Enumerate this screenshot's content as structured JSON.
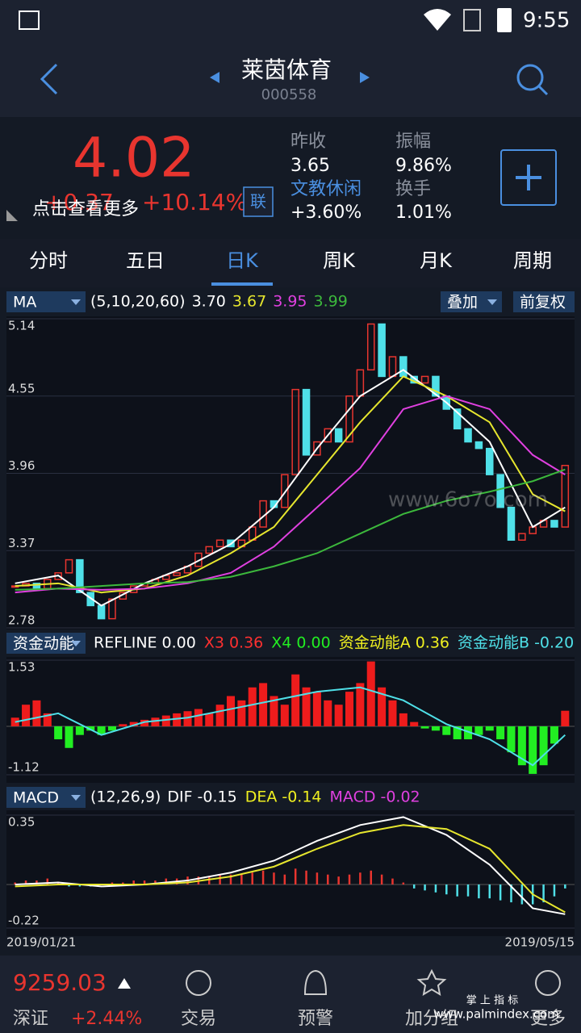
{
  "status_bar": {
    "time": "9:55"
  },
  "header": {
    "title": "莱茵体育",
    "code": "000558"
  },
  "quote": {
    "price": "4.02",
    "change": "+0.37",
    "change_pct": "+10.14%",
    "more": "点击查看更多",
    "link_button": "联",
    "prev_close_label": "昨收",
    "prev_close": "3.65",
    "sector": "文教休闲",
    "sector_change": "+3.60%",
    "amplitude_label": "振幅",
    "amplitude": "9.86%",
    "turnover_label": "换手",
    "turnover": "1.01%"
  },
  "tabs": [
    "分时",
    "五日",
    "日K",
    "周K",
    "月K",
    "周期"
  ],
  "active_tab": 2,
  "chart_data": [
    {
      "type": "candlestick",
      "indicator": "MA",
      "params": "(5,10,20,60)",
      "overlay": "叠加",
      "adjust": "前复权",
      "up_color": "#e8352f",
      "down_color": "#4fe0e8",
      "categories": [
        "2019/01/21",
        null,
        null,
        null,
        null,
        null,
        null,
        null,
        null,
        null,
        null,
        null,
        null,
        null,
        null,
        null,
        null,
        null,
        null,
        null,
        null,
        null,
        null,
        null,
        null,
        null,
        null,
        null,
        null,
        null,
        null,
        null,
        null,
        null,
        null,
        null,
        null,
        null,
        null,
        null,
        null,
        null,
        null,
        null,
        null,
        null,
        null,
        null,
        null,
        null,
        null,
        "2019/05/15"
      ],
      "values": [
        3.1,
        3.12,
        3.08,
        3.15,
        3.2,
        3.3,
        3.05,
        2.95,
        2.85,
        3.0,
        3.05,
        3.1,
        3.12,
        3.15,
        3.18,
        3.2,
        3.25,
        3.35,
        3.4,
        3.45,
        3.4,
        3.45,
        3.55,
        3.75,
        3.7,
        3.95,
        4.6,
        4.1,
        4.2,
        4.3,
        4.2,
        4.55,
        4.75,
        5.1,
        4.7,
        4.85,
        4.7,
        4.65,
        4.7,
        4.55,
        4.45,
        4.3,
        4.2,
        4.15,
        3.95,
        3.7,
        3.45,
        3.5,
        3.55,
        3.6,
        3.55,
        4.02
      ],
      "ylim": [
        2.78,
        5.14
      ],
      "yticks": [
        5.14,
        4.55,
        3.96,
        3.37,
        2.78
      ],
      "series": [
        {
          "color": "#ffffff",
          "value_label": "3.70",
          "x": [
            0,
            4,
            8,
            12,
            16,
            20,
            24,
            28,
            32,
            36,
            40,
            44,
            48,
            51
          ],
          "values": [
            3.12,
            3.18,
            2.95,
            3.12,
            3.25,
            3.42,
            3.7,
            4.15,
            4.55,
            4.75,
            4.5,
            4.2,
            3.55,
            3.7
          ]
        },
        {
          "color": "#e6e62e",
          "value_label": "3.67",
          "x": [
            0,
            4,
            8,
            12,
            16,
            20,
            24,
            28,
            32,
            36,
            40,
            44,
            48,
            51
          ],
          "values": [
            3.1,
            3.12,
            3.05,
            3.08,
            3.18,
            3.35,
            3.55,
            3.95,
            4.35,
            4.7,
            4.55,
            4.35,
            3.8,
            3.67
          ]
        },
        {
          "color": "#e040e0",
          "value_label": "3.95",
          "x": [
            0,
            4,
            8,
            12,
            16,
            20,
            24,
            28,
            32,
            36,
            40,
            44,
            48,
            51
          ],
          "values": [
            3.05,
            3.08,
            3.07,
            3.08,
            3.12,
            3.2,
            3.4,
            3.7,
            4.0,
            4.45,
            4.55,
            4.45,
            4.1,
            3.95
          ]
        },
        {
          "color": "#3cb83c",
          "value_label": "3.99",
          "x": [
            0,
            4,
            8,
            12,
            16,
            20,
            24,
            28,
            32,
            36,
            40,
            44,
            48,
            51
          ],
          "values": [
            3.07,
            3.08,
            3.1,
            3.12,
            3.13,
            3.17,
            3.25,
            3.35,
            3.5,
            3.65,
            3.75,
            3.82,
            3.9,
            3.99
          ]
        }
      ]
    },
    {
      "type": "bar",
      "indicator": "资金动能",
      "up_color": "#ee1c1c",
      "down_color": "#22ee22",
      "legend": [
        {
          "name": "REFLINE",
          "value": "0.00",
          "color": "#ffffff"
        },
        {
          "name": "X3",
          "value": "0.36",
          "color": "#ff3030"
        },
        {
          "name": "X4",
          "value": "0.00",
          "color": "#22ee22"
        },
        {
          "name": "资金动能A",
          "value": "0.36",
          "color": "#f0f020"
        },
        {
          "name": "资金动能B",
          "value": "-0.20",
          "color": "#4fe0e8"
        }
      ],
      "values": [
        0.2,
        0.5,
        0.6,
        0.3,
        -0.3,
        -0.5,
        -0.2,
        -0.1,
        -0.2,
        -0.1,
        0.05,
        0.1,
        0.15,
        0.2,
        0.25,
        0.3,
        0.35,
        0.4,
        0.3,
        0.5,
        0.7,
        0.6,
        0.9,
        1.0,
        0.7,
        0.5,
        1.2,
        0.9,
        0.8,
        0.6,
        0.5,
        0.8,
        1.0,
        1.5,
        0.9,
        0.6,
        0.3,
        0.1,
        -0.05,
        -0.1,
        -0.2,
        -0.3,
        -0.3,
        -0.2,
        -0.1,
        -0.3,
        -0.6,
        -0.9,
        -1.1,
        -0.9,
        -0.4,
        0.36
      ],
      "ylim": [
        -1.12,
        1.53
      ],
      "yticks": [
        1.53,
        -1.12
      ],
      "series": [
        {
          "color": "#4fe0e8",
          "x": [
            0,
            4,
            8,
            12,
            16,
            20,
            24,
            28,
            32,
            36,
            40,
            44,
            48,
            51
          ],
          "values": [
            0.1,
            0.3,
            -0.2,
            0.1,
            0.2,
            0.4,
            0.6,
            0.8,
            0.9,
            0.6,
            0.05,
            -0.3,
            -0.9,
            -0.2
          ]
        }
      ]
    },
    {
      "type": "bar",
      "indicator": "MACD",
      "params": "(12,26,9)",
      "up_color": "#e8352f",
      "down_color": "#4fe0e8",
      "thin": true,
      "legend": [
        {
          "name": "DIF",
          "value": "-0.15",
          "color": "#ffffff"
        },
        {
          "name": "DEA",
          "value": "-0.14",
          "color": "#f0f020"
        },
        {
          "name": "MACD",
          "value": "-0.02",
          "color": "#e040e0"
        }
      ],
      "values": [
        0.01,
        0.02,
        0.02,
        0.03,
        0.01,
        -0.01,
        -0.01,
        -0.01,
        0,
        0.01,
        0.01,
        0.02,
        0.02,
        0.02,
        0.03,
        0.03,
        0.04,
        0.04,
        0.04,
        0.05,
        0.05,
        0.05,
        0.06,
        0.07,
        0.06,
        0.05,
        0.08,
        0.07,
        0.06,
        0.05,
        0.04,
        0.05,
        0.06,
        0.07,
        0.05,
        0.03,
        0.01,
        -0.02,
        -0.03,
        -0.04,
        -0.05,
        -0.06,
        -0.06,
        -0.07,
        -0.07,
        -0.08,
        -0.09,
        -0.1,
        -0.1,
        -0.09,
        -0.06,
        -0.02
      ],
      "ylim": [
        -0.22,
        0.35
      ],
      "yticks": [
        0.35,
        -0.22
      ],
      "series": [
        {
          "color": "#ffffff",
          "x": [
            0,
            4,
            8,
            12,
            16,
            20,
            24,
            28,
            32,
            36,
            40,
            44,
            48,
            51
          ],
          "values": [
            0.0,
            0.01,
            -0.01,
            0.0,
            0.02,
            0.06,
            0.12,
            0.22,
            0.3,
            0.34,
            0.25,
            0.1,
            -0.12,
            -0.15
          ]
        },
        {
          "color": "#e6e62e",
          "x": [
            0,
            4,
            8,
            12,
            16,
            20,
            24,
            28,
            32,
            36,
            40,
            44,
            48,
            51
          ],
          "values": [
            -0.01,
            0.0,
            0.0,
            0.0,
            0.01,
            0.04,
            0.09,
            0.18,
            0.26,
            0.3,
            0.28,
            0.18,
            -0.05,
            -0.14
          ]
        }
      ]
    }
  ],
  "index": {
    "value": "9259.03",
    "name": "深证",
    "change": "+2.44%"
  },
  "nav": [
    "交易",
    "预警",
    "加分组",
    "更多"
  ],
  "watermarks": [
    "www.6o7o.com",
    "掌 上 指 标",
    "www.palmindex.com"
  ]
}
